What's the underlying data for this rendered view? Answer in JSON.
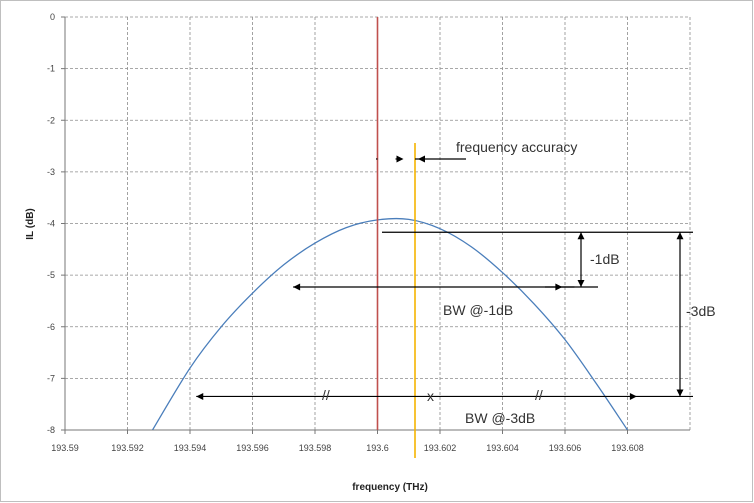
{
  "chart_data": {
    "type": "line",
    "title": "",
    "xlabel": "frequency (THz)",
    "ylabel": "IL (dB)",
    "xlim": [
      193.59,
      193.61
    ],
    "ylim": [
      -8,
      0
    ],
    "x_ticks": [
      "193.59",
      "193.592",
      "193.594",
      "193.596",
      "193.598",
      "193.6",
      "193.602",
      "193.604",
      "193.606",
      "193.608"
    ],
    "y_ticks": [
      "0",
      "-1",
      "-2",
      "-3",
      "-4",
      "-5",
      "-6",
      "-7",
      "-8"
    ],
    "grid": true,
    "legend": "none",
    "series": [
      {
        "color": "#4a7ebb",
        "x": [
          193.5928,
          193.594,
          193.595,
          193.596,
          193.597,
          193.598,
          193.599,
          193.6,
          193.601,
          193.602,
          193.603,
          193.604,
          193.605,
          193.606,
          193.607,
          193.608,
          193.6085
        ],
        "y": [
          -8.0,
          -6.8,
          -6.0,
          -5.35,
          -4.8,
          -4.38,
          -4.08,
          -3.93,
          -3.92,
          -4.1,
          -4.45,
          -4.95,
          -5.55,
          -6.25,
          -7.1,
          -8.0,
          -8.45
        ]
      }
    ],
    "vertical_lines": [
      {
        "x": 193.6,
        "color": "#c0504d"
      },
      {
        "x": 193.6012,
        "color": "#f5b400"
      }
    ],
    "annotations": {
      "freq_accuracy": "frequency accuracy",
      "minus1db": "-1dB",
      "bw1": "BW @-1dB",
      "minus3db": "-3dB",
      "bw3": "BW @-3dB",
      "break_mark": "//",
      "center_mark": "x"
    },
    "markers": {
      "freq_accuracy_y": -2.75,
      "level_1db_top": -4.17,
      "level_1db_bottom": -5.23,
      "bw1_x": [
        193.5973,
        193.6063
      ],
      "level_3db_top": -4.17,
      "level_3db_bottom": -7.35,
      "bw3_y": -7.35,
      "bw3_x": [
        193.5942,
        193.6083
      ]
    }
  }
}
